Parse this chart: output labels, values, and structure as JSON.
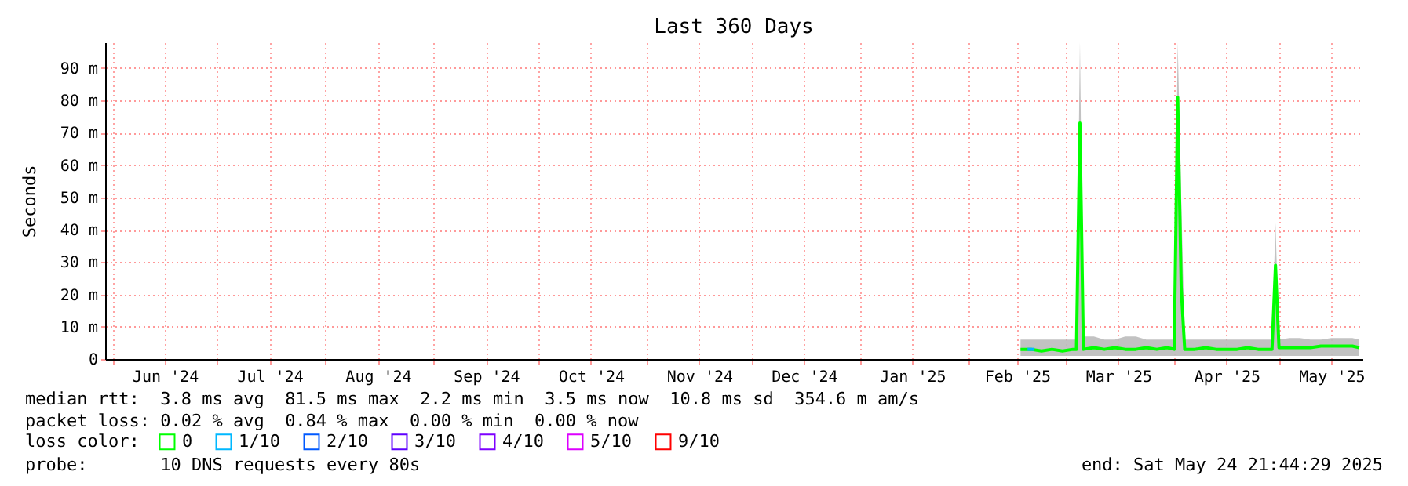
{
  "chart_data": {
    "type": "line",
    "title": "Last 360 Days",
    "ylabel": "Seconds",
    "x": [
      "2025-02-16",
      "2025-02-19",
      "2025-02-22",
      "2025-02-25",
      "2025-02-28",
      "2025-03-03",
      "2025-03-04",
      "2025-03-05",
      "2025-03-06",
      "2025-03-09",
      "2025-03-12",
      "2025-03-15",
      "2025-03-18",
      "2025-03-21",
      "2025-03-24",
      "2025-03-27",
      "2025-03-30",
      "2025-04-01",
      "2025-04-02",
      "2025-04-03",
      "2025-04-04",
      "2025-04-07",
      "2025-04-10",
      "2025-04-13",
      "2025-04-16",
      "2025-04-19",
      "2025-04-22",
      "2025-04-25",
      "2025-04-28",
      "2025-04-29",
      "2025-04-30",
      "2025-05-01",
      "2025-05-04",
      "2025-05-07",
      "2025-05-10",
      "2025-05-13",
      "2025-05-16",
      "2025-05-19",
      "2025-05-22",
      "2025-05-24"
    ],
    "series": [
      {
        "name": "0",
        "color": "#00ff00",
        "values": [
          3,
          3,
          2.5,
          3,
          2.5,
          3,
          3,
          73,
          3,
          3.5,
          3,
          3.5,
          3,
          3,
          3.5,
          3,
          3.5,
          3,
          81,
          22,
          3,
          3,
          3.5,
          3,
          3,
          3,
          3.5,
          3,
          3,
          3,
          29,
          3.5,
          3.5,
          3.5,
          3.5,
          4,
          4,
          4,
          4,
          3.5
        ],
        "lower": [
          1,
          1,
          1,
          1,
          1,
          1,
          1,
          1,
          1,
          1,
          1,
          1,
          1,
          1,
          1,
          1,
          1,
          1,
          1,
          1,
          1,
          1,
          1,
          1,
          1,
          1,
          1,
          1,
          1,
          1,
          1,
          1,
          1,
          1,
          1,
          1,
          1,
          1,
          1,
          1
        ],
        "upper": [
          6,
          6,
          6,
          6,
          6,
          6,
          6,
          98,
          7,
          7,
          6,
          6,
          7,
          7,
          6,
          6,
          6,
          6,
          98,
          50,
          6,
          6,
          6,
          6,
          6,
          6,
          6,
          6,
          6,
          6,
          42,
          6,
          6.5,
          6.5,
          6,
          6,
          6.5,
          6.5,
          6.5,
          6
        ]
      },
      {
        "name": "1/10",
        "color": "#00b8ff",
        "x": [
          "2025-02-18",
          "2025-02-20"
        ],
        "values": [
          3,
          3
        ]
      },
      {
        "name": "2/10",
        "color": "#0059ff",
        "values": [
          null,
          null,
          null,
          null,
          null,
          null,
          null,
          null,
          null,
          null,
          null,
          null,
          null,
          null,
          null,
          null,
          null,
          null,
          null,
          null,
          null,
          null,
          null,
          null,
          null,
          null,
          null,
          null,
          null,
          null,
          null,
          null,
          null,
          null,
          null,
          null,
          null,
          null,
          null,
          null
        ]
      },
      {
        "name": "3/10",
        "color": "#5e00ff",
        "values": [
          null,
          null,
          null,
          null,
          null,
          null,
          null,
          null,
          null,
          null,
          null,
          null,
          null,
          null,
          null,
          null,
          null,
          null,
          null,
          null,
          null,
          null,
          null,
          null,
          null,
          null,
          null,
          null,
          null,
          null,
          null,
          null,
          null,
          null,
          null,
          null,
          null,
          null,
          null,
          null
        ]
      },
      {
        "name": "4/10",
        "color": "#7e00ff",
        "values": [
          null,
          null,
          null,
          null,
          null,
          null,
          null,
          null,
          null,
          null,
          null,
          null,
          null,
          null,
          null,
          null,
          null,
          null,
          null,
          null,
          null,
          null,
          null,
          null,
          null,
          null,
          null,
          null,
          null,
          null,
          null,
          null,
          null,
          null,
          null,
          null,
          null,
          null,
          null,
          null
        ]
      },
      {
        "name": "5/10",
        "color": "#dd00ff",
        "values": [
          null,
          null,
          null,
          null,
          null,
          null,
          null,
          null,
          null,
          null,
          null,
          null,
          null,
          null,
          null,
          null,
          null,
          null,
          null,
          null,
          null,
          null,
          null,
          null,
          null,
          null,
          null,
          null,
          null,
          null,
          null,
          null,
          null,
          null,
          null,
          null,
          null,
          null,
          null,
          null
        ]
      },
      {
        "name": "9/10",
        "color": "#ff0000",
        "values": [
          null,
          null,
          null,
          null,
          null,
          null,
          null,
          null,
          null,
          null,
          null,
          null,
          null,
          null,
          null,
          null,
          null,
          null,
          null,
          null,
          null,
          null,
          null,
          null,
          null,
          null,
          null,
          null,
          null,
          null,
          null,
          null,
          null,
          null,
          null,
          null,
          null,
          null,
          null,
          null
        ]
      }
    ],
    "legend_title": "loss color:",
    "legend": "bottom",
    "xlim": [
      "2024-05-29T21:44",
      "2025-05-24T21:44"
    ],
    "xticks": [
      {
        "value": "2024-06-01",
        "label": null
      },
      {
        "value": "2024-06-16",
        "label": "Jun '24"
      },
      {
        "value": "2024-07-01",
        "label": null
      },
      {
        "value": "2024-07-16",
        "label": "Jul '24"
      },
      {
        "value": "2024-08-01",
        "label": null
      },
      {
        "value": "2024-08-16",
        "label": "Aug '24"
      },
      {
        "value": "2024-09-01",
        "label": null
      },
      {
        "value": "2024-09-16",
        "label": "Sep '24"
      },
      {
        "value": "2024-10-01",
        "label": null
      },
      {
        "value": "2024-10-16",
        "label": "Oct '24"
      },
      {
        "value": "2024-11-01",
        "label": null
      },
      {
        "value": "2024-11-16",
        "label": "Nov '24"
      },
      {
        "value": "2024-12-01",
        "label": null
      },
      {
        "value": "2024-12-16",
        "label": "Dec '24"
      },
      {
        "value": "2025-01-01",
        "label": null
      },
      {
        "value": "2025-01-16",
        "label": "Jan '25"
      },
      {
        "value": "2025-02-01",
        "label": null
      },
      {
        "value": "2025-02-15",
        "label": "Feb '25"
      },
      {
        "value": "2025-03-01",
        "label": null
      },
      {
        "value": "2025-03-16",
        "label": "Mar '25"
      },
      {
        "value": "2025-04-01",
        "label": null
      },
      {
        "value": "2025-04-16",
        "label": "Apr '25"
      },
      {
        "value": "2025-05-01",
        "label": null
      },
      {
        "value": "2025-05-16",
        "label": "May '25"
      }
    ],
    "ylim": [
      0,
      98
    ],
    "yticks": [
      0,
      {
        "value": 10,
        "label": "10 m"
      },
      {
        "value": 20,
        "label": "20 m"
      },
      {
        "value": 30,
        "label": "30 m"
      },
      {
        "value": 40,
        "label": "40 m"
      },
      {
        "value": 50,
        "label": "50 m"
      },
      {
        "value": 60,
        "label": "60 m"
      },
      {
        "value": 70,
        "label": "70 m"
      },
      {
        "value": 80,
        "label": "80 m"
      },
      {
        "value": 90,
        "label": "90 m"
      }
    ],
    "grid": true,
    "annotations": [
      "median rtt:  3.8 ms avg  81.5 ms max  2.2 ms min  3.5 ms now  10.8 ms sd  354.6 m am/s",
      "packet loss: 0.02 % avg  0.84 % max  0.00 % min  0.00 % now",
      "probe:       10 DNS requests every 80s",
      "end: Sat May 24 21:44:29 2025"
    ]
  }
}
